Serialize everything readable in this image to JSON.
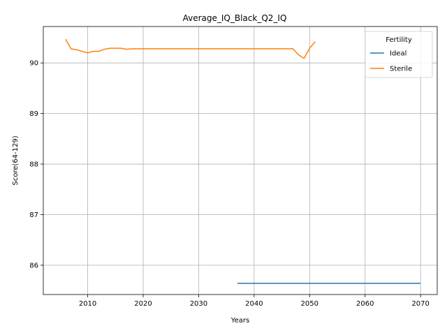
{
  "chart_data": {
    "type": "line",
    "title": "Average_IQ_Black_Q2_IQ",
    "xlabel": "Years",
    "ylabel": "Score(64-129)",
    "xlim": [
      2002,
      2073
    ],
    "ylim": [
      85.42,
      90.72
    ],
    "xticks": [
      2010,
      2020,
      2030,
      2040,
      2050,
      2060,
      2070
    ],
    "yticks": [
      86,
      87,
      88,
      89,
      90
    ],
    "grid": true,
    "legend": {
      "title": "Fertility",
      "placement": "top-right"
    },
    "series": [
      {
        "name": "Ideal",
        "color": "#1f77b4",
        "x": [
          2037,
          2040,
          2045,
          2050,
          2055,
          2060,
          2065,
          2070
        ],
        "y": [
          85.64,
          85.64,
          85.64,
          85.64,
          85.64,
          85.64,
          85.64,
          85.64
        ]
      },
      {
        "name": "Sterile",
        "color": "#ff7f0e",
        "x": [
          2006,
          2007,
          2008,
          2009,
          2010,
          2011,
          2012,
          2013,
          2014,
          2015,
          2016,
          2017,
          2018,
          2019,
          2020,
          2025,
          2030,
          2035,
          2040,
          2045,
          2047,
          2048,
          2049,
          2050,
          2051
        ],
        "y": [
          90.47,
          90.28,
          90.26,
          90.23,
          90.2,
          90.23,
          90.23,
          90.27,
          90.29,
          90.29,
          90.29,
          90.27,
          90.28,
          90.28,
          90.28,
          90.28,
          90.28,
          90.28,
          90.28,
          90.28,
          90.28,
          90.16,
          90.09,
          90.29,
          90.42
        ]
      }
    ]
  }
}
